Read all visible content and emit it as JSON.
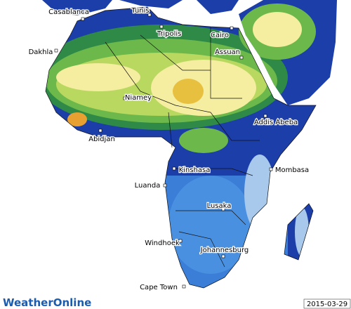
{
  "map": {
    "cities": [
      "Casablanca",
      "Tunis",
      "Tripolis",
      "Cairo",
      "Dakhla",
      "Assuan",
      "Niamey",
      "Addis Abeba",
      "Abidjan",
      "Kinshasa",
      "Mombasa",
      "Luanda",
      "Lusaka",
      "Windhoek",
      "Johannesburg",
      "Cape Town"
    ]
  },
  "logo": "WeatherOnline",
  "date": "2015-03-29"
}
